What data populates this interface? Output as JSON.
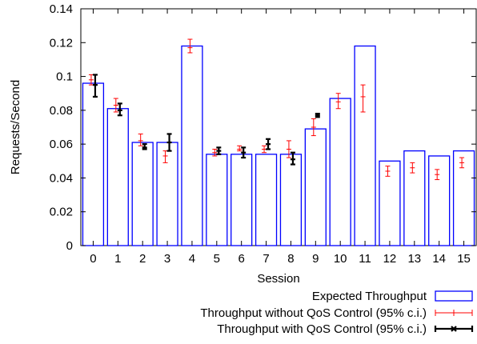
{
  "chart_data": {
    "type": "bar",
    "xlabel": "Session",
    "ylabel": "Requests/Second",
    "ylim": [
      0,
      0.14
    ],
    "yticks": [
      0,
      0.02,
      0.04,
      0.06,
      0.08,
      0.1,
      0.12,
      0.14
    ],
    "ytick_labels": [
      "0",
      "0.02",
      "0.04",
      "0.06",
      "0.08",
      "0.1",
      "0.12",
      "0.14"
    ],
    "categories": [
      "0",
      "1",
      "2",
      "3",
      "4",
      "5",
      "6",
      "7",
      "8",
      "9",
      "10",
      "11",
      "12",
      "13",
      "14",
      "15"
    ],
    "grid": false,
    "legend_position": "bottom-right",
    "series": [
      {
        "name": "Expected Throughput",
        "kind": "bar",
        "color": "#0000ff",
        "values": [
          0.096,
          0.081,
          0.061,
          0.061,
          0.118,
          0.054,
          0.054,
          0.054,
          0.054,
          0.069,
          0.087,
          0.118,
          0.05,
          0.056,
          0.053,
          0.056
        ]
      },
      {
        "name": "Throughput without QoS Control (95% c.i.)",
        "kind": "errorbar",
        "color": "#ff0000",
        "values": [
          0.098,
          0.083,
          0.062,
          0.053,
          0.117,
          0.055,
          0.057,
          0.057,
          0.057,
          0.07,
          0.085,
          0.088,
          0.044,
          0.046,
          0.042,
          0.049
        ],
        "lower": [
          0.095,
          0.079,
          0.059,
          0.049,
          0.114,
          0.053,
          0.056,
          0.055,
          0.052,
          0.065,
          0.081,
          0.079,
          0.041,
          0.043,
          0.039,
          0.046
        ],
        "upper": [
          0.101,
          0.087,
          0.066,
          0.056,
          0.122,
          0.057,
          0.059,
          0.059,
          0.062,
          0.075,
          0.09,
          0.095,
          0.047,
          0.049,
          0.045,
          0.052
        ]
      },
      {
        "name": "Throughput with QoS Control (95% c.i.)",
        "kind": "errorbar",
        "color": "#000000",
        "values": [
          0.095,
          0.08,
          0.058,
          0.061,
          null,
          0.056,
          0.055,
          0.06,
          0.051,
          0.077,
          null,
          null,
          null,
          null,
          null,
          null
        ],
        "lower": [
          0.088,
          0.077,
          0.057,
          0.056,
          null,
          0.054,
          0.052,
          0.057,
          0.048,
          0.076,
          null,
          null,
          null,
          null,
          null,
          null
        ],
        "upper": [
          0.101,
          0.084,
          0.06,
          0.066,
          null,
          0.058,
          0.058,
          0.063,
          0.055,
          0.078,
          null,
          null,
          null,
          null,
          null,
          null
        ]
      }
    ]
  }
}
